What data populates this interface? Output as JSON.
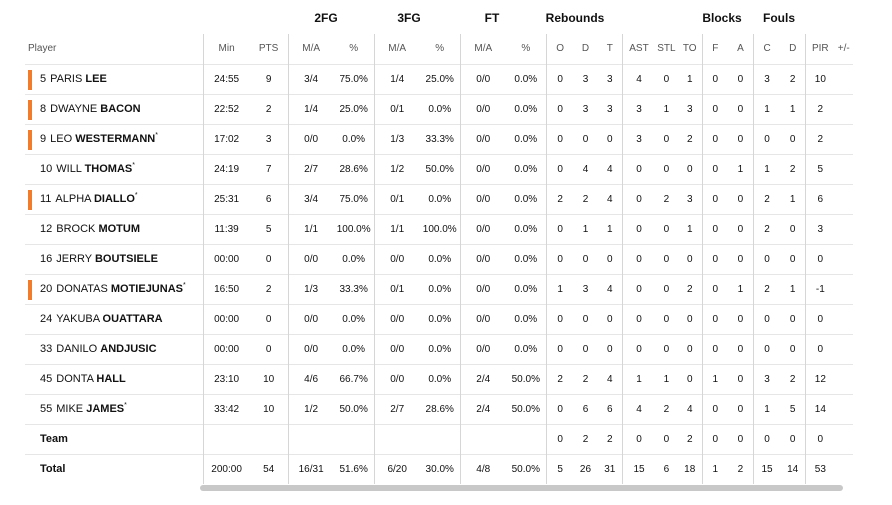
{
  "groups": {
    "fg2": "2FG",
    "fg3": "3FG",
    "ft": "FT",
    "rebounds": "Rebounds",
    "blocks": "Blocks",
    "fouls": "Fouls"
  },
  "columns": {
    "player": "Player",
    "min": "Min",
    "pts": "PTS",
    "fg2_ma": "M/A",
    "fg2_pct": "%",
    "fg3_ma": "M/A",
    "fg3_pct": "%",
    "ft_ma": "M/A",
    "ft_pct": "%",
    "o": "O",
    "d": "D",
    "t": "T",
    "ast": "AST",
    "stl": "STL",
    "to": "TO",
    "blk_f": "F",
    "blk_a": "A",
    "foul_c": "C",
    "foul_d": "D",
    "pir": "PIR",
    "pm": "+/-"
  },
  "players": [
    {
      "num": "5",
      "first": "PARIS",
      "last": "LEE",
      "star": "",
      "starter": true,
      "min": "24:55",
      "pts": "9",
      "fg2_ma": "3/4",
      "fg2_pct": "75.0%",
      "fg3_ma": "1/4",
      "fg3_pct": "25.0%",
      "ft_ma": "0/0",
      "ft_pct": "0.0%",
      "o": "0",
      "d": "3",
      "t": "3",
      "ast": "4",
      "stl": "0",
      "to": "1",
      "blk_f": "0",
      "blk_a": "0",
      "foul_c": "3",
      "foul_d": "2",
      "pir": "10",
      "pm": ""
    },
    {
      "num": "8",
      "first": "DWAYNE",
      "last": "BACON",
      "star": "",
      "starter": true,
      "min": "22:52",
      "pts": "2",
      "fg2_ma": "1/4",
      "fg2_pct": "25.0%",
      "fg3_ma": "0/1",
      "fg3_pct": "0.0%",
      "ft_ma": "0/0",
      "ft_pct": "0.0%",
      "o": "0",
      "d": "3",
      "t": "3",
      "ast": "3",
      "stl": "1",
      "to": "3",
      "blk_f": "0",
      "blk_a": "0",
      "foul_c": "1",
      "foul_d": "1",
      "pir": "2",
      "pm": ""
    },
    {
      "num": "9",
      "first": "LEO",
      "last": "WESTERMANN",
      "star": "*",
      "starter": true,
      "min": "17:02",
      "pts": "3",
      "fg2_ma": "0/0",
      "fg2_pct": "0.0%",
      "fg3_ma": "1/3",
      "fg3_pct": "33.3%",
      "ft_ma": "0/0",
      "ft_pct": "0.0%",
      "o": "0",
      "d": "0",
      "t": "0",
      "ast": "3",
      "stl": "0",
      "to": "2",
      "blk_f": "0",
      "blk_a": "0",
      "foul_c": "0",
      "foul_d": "0",
      "pir": "2",
      "pm": ""
    },
    {
      "num": "10",
      "first": "WILL",
      "last": "THOMAS",
      "star": "*",
      "starter": false,
      "min": "24:19",
      "pts": "7",
      "fg2_ma": "2/7",
      "fg2_pct": "28.6%",
      "fg3_ma": "1/2",
      "fg3_pct": "50.0%",
      "ft_ma": "0/0",
      "ft_pct": "0.0%",
      "o": "0",
      "d": "4",
      "t": "4",
      "ast": "0",
      "stl": "0",
      "to": "0",
      "blk_f": "0",
      "blk_a": "1",
      "foul_c": "1",
      "foul_d": "2",
      "pir": "5",
      "pm": ""
    },
    {
      "num": "11",
      "first": "ALPHA",
      "last": "DIALLO",
      "star": "*",
      "starter": true,
      "min": "25:31",
      "pts": "6",
      "fg2_ma": "3/4",
      "fg2_pct": "75.0%",
      "fg3_ma": "0/1",
      "fg3_pct": "0.0%",
      "ft_ma": "0/0",
      "ft_pct": "0.0%",
      "o": "2",
      "d": "2",
      "t": "4",
      "ast": "0",
      "stl": "2",
      "to": "3",
      "blk_f": "0",
      "blk_a": "0",
      "foul_c": "2",
      "foul_d": "1",
      "pir": "6",
      "pm": ""
    },
    {
      "num": "12",
      "first": "BROCK",
      "last": "MOTUM",
      "star": "",
      "starter": false,
      "min": "11:39",
      "pts": "5",
      "fg2_ma": "1/1",
      "fg2_pct": "100.0%",
      "fg3_ma": "1/1",
      "fg3_pct": "100.0%",
      "ft_ma": "0/0",
      "ft_pct": "0.0%",
      "o": "0",
      "d": "1",
      "t": "1",
      "ast": "0",
      "stl": "0",
      "to": "1",
      "blk_f": "0",
      "blk_a": "0",
      "foul_c": "2",
      "foul_d": "0",
      "pir": "3",
      "pm": ""
    },
    {
      "num": "16",
      "first": "JERRY",
      "last": "BOUTSIELE",
      "star": "",
      "starter": false,
      "min": "00:00",
      "pts": "0",
      "fg2_ma": "0/0",
      "fg2_pct": "0.0%",
      "fg3_ma": "0/0",
      "fg3_pct": "0.0%",
      "ft_ma": "0/0",
      "ft_pct": "0.0%",
      "o": "0",
      "d": "0",
      "t": "0",
      "ast": "0",
      "stl": "0",
      "to": "0",
      "blk_f": "0",
      "blk_a": "0",
      "foul_c": "0",
      "foul_d": "0",
      "pir": "0",
      "pm": ""
    },
    {
      "num": "20",
      "first": "DONATAS",
      "last": "MOTIEJUNAS",
      "star": "*",
      "starter": true,
      "min": "16:50",
      "pts": "2",
      "fg2_ma": "1/3",
      "fg2_pct": "33.3%",
      "fg3_ma": "0/1",
      "fg3_pct": "0.0%",
      "ft_ma": "0/0",
      "ft_pct": "0.0%",
      "o": "1",
      "d": "3",
      "t": "4",
      "ast": "0",
      "stl": "0",
      "to": "2",
      "blk_f": "0",
      "blk_a": "1",
      "foul_c": "2",
      "foul_d": "1",
      "pir": "-1",
      "pm": ""
    },
    {
      "num": "24",
      "first": "YAKUBA",
      "last": "OUATTARA",
      "star": "",
      "starter": false,
      "min": "00:00",
      "pts": "0",
      "fg2_ma": "0/0",
      "fg2_pct": "0.0%",
      "fg3_ma": "0/0",
      "fg3_pct": "0.0%",
      "ft_ma": "0/0",
      "ft_pct": "0.0%",
      "o": "0",
      "d": "0",
      "t": "0",
      "ast": "0",
      "stl": "0",
      "to": "0",
      "blk_f": "0",
      "blk_a": "0",
      "foul_c": "0",
      "foul_d": "0",
      "pir": "0",
      "pm": ""
    },
    {
      "num": "33",
      "first": "DANILO",
      "last": "ANDJUSIC",
      "star": "",
      "starter": false,
      "min": "00:00",
      "pts": "0",
      "fg2_ma": "0/0",
      "fg2_pct": "0.0%",
      "fg3_ma": "0/0",
      "fg3_pct": "0.0%",
      "ft_ma": "0/0",
      "ft_pct": "0.0%",
      "o": "0",
      "d": "0",
      "t": "0",
      "ast": "0",
      "stl": "0",
      "to": "0",
      "blk_f": "0",
      "blk_a": "0",
      "foul_c": "0",
      "foul_d": "0",
      "pir": "0",
      "pm": ""
    },
    {
      "num": "45",
      "first": "DONTA",
      "last": "HALL",
      "star": "",
      "starter": false,
      "min": "23:10",
      "pts": "10",
      "fg2_ma": "4/6",
      "fg2_pct": "66.7%",
      "fg3_ma": "0/0",
      "fg3_pct": "0.0%",
      "ft_ma": "2/4",
      "ft_pct": "50.0%",
      "o": "2",
      "d": "2",
      "t": "4",
      "ast": "1",
      "stl": "1",
      "to": "0",
      "blk_f": "1",
      "blk_a": "0",
      "foul_c": "3",
      "foul_d": "2",
      "pir": "12",
      "pm": ""
    },
    {
      "num": "55",
      "first": "MIKE",
      "last": "JAMES",
      "star": "*",
      "starter": false,
      "min": "33:42",
      "pts": "10",
      "fg2_ma": "1/2",
      "fg2_pct": "50.0%",
      "fg3_ma": "2/7",
      "fg3_pct": "28.6%",
      "ft_ma": "2/4",
      "ft_pct": "50.0%",
      "o": "0",
      "d": "6",
      "t": "6",
      "ast": "4",
      "stl": "2",
      "to": "4",
      "blk_f": "0",
      "blk_a": "0",
      "foul_c": "1",
      "foul_d": "5",
      "pir": "14",
      "pm": ""
    }
  ],
  "team_row": {
    "label": "Team",
    "min": "",
    "pts": "",
    "fg2_ma": "",
    "fg2_pct": "",
    "fg3_ma": "",
    "fg3_pct": "",
    "ft_ma": "",
    "ft_pct": "",
    "o": "0",
    "d": "2",
    "t": "2",
    "ast": "0",
    "stl": "0",
    "to": "2",
    "blk_f": "0",
    "blk_a": "0",
    "foul_c": "0",
    "foul_d": "0",
    "pir": "0",
    "pm": ""
  },
  "total_row": {
    "label": "Total",
    "min": "200:00",
    "pts": "54",
    "fg2_ma": "16/31",
    "fg2_pct": "51.6%",
    "fg3_ma": "6/20",
    "fg3_pct": "30.0%",
    "ft_ma": "4/8",
    "ft_pct": "50.0%",
    "o": "5",
    "d": "26",
    "t": "31",
    "ast": "15",
    "stl": "6",
    "to": "18",
    "blk_f": "1",
    "blk_a": "2",
    "foul_c": "15",
    "foul_d": "14",
    "pir": "53",
    "pm": ""
  },
  "colors": {
    "starter_marker": "#f07c2c",
    "divider": "#d6d6d6",
    "row_border": "#e6e6e6",
    "scrollbar": "#c8c8c8"
  }
}
